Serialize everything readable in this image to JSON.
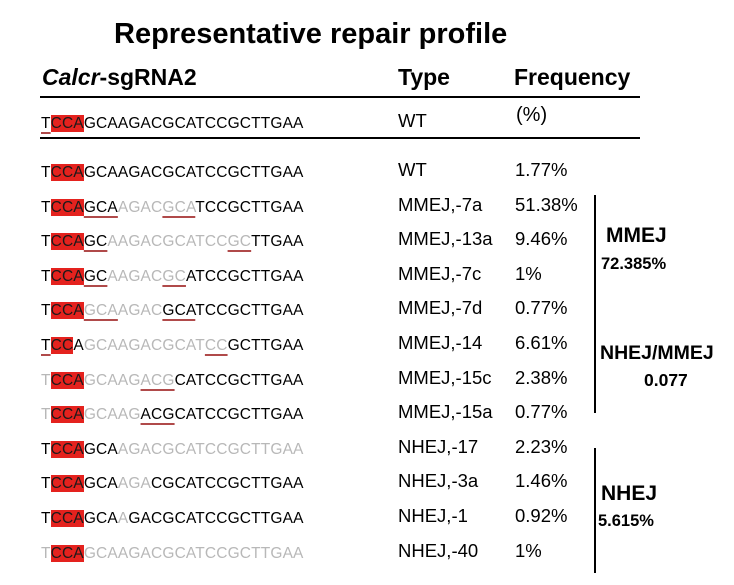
{
  "title": "Representative repair profile",
  "headers": {
    "sgrna_italic": "Calcr",
    "sgrna_rest": "-sgRNA2",
    "type": "Type",
    "frequency": "Frequency",
    "frequency_unit": "(%)"
  },
  "reference": {
    "segments": [
      {
        "t": "T",
        "s": "u"
      },
      {
        "t": "CCA",
        "s": "r"
      },
      {
        "t": "GCAAGACGCATCCGCTTGAA",
        "s": "n"
      }
    ],
    "type": "WT"
  },
  "rows": [
    {
      "segments": [
        {
          "t": "T",
          "s": "n"
        },
        {
          "t": "CCA",
          "s": "r"
        },
        {
          "t": "GCAAGACGCATCCGCTTGAA",
          "s": "n"
        }
      ],
      "type": "WT",
      "freq": "1.77%"
    },
    {
      "segments": [
        {
          "t": "T",
          "s": "n"
        },
        {
          "t": "CCA",
          "s": "r"
        },
        {
          "t": "GCA",
          "s": "u"
        },
        {
          "t": "AGAC",
          "s": "g"
        },
        {
          "t": "GCA",
          "s": "gu"
        },
        {
          "t": "TCCGCTTGAA",
          "s": "n"
        }
      ],
      "type": "MMEJ,-7a",
      "freq": "51.38%"
    },
    {
      "segments": [
        {
          "t": "T",
          "s": "n"
        },
        {
          "t": "CCA",
          "s": "r"
        },
        {
          "t": "GC",
          "s": "u"
        },
        {
          "t": "AAGACGCATCC",
          "s": "g"
        },
        {
          "t": "GC",
          "s": "gu"
        },
        {
          "t": "TTGAA",
          "s": "n"
        }
      ],
      "type": "MMEJ,-13a",
      "freq": "9.46%"
    },
    {
      "segments": [
        {
          "t": "T",
          "s": "n"
        },
        {
          "t": "CCA",
          "s": "r"
        },
        {
          "t": "GC",
          "s": "u"
        },
        {
          "t": "AAGAC",
          "s": "g"
        },
        {
          "t": "GC",
          "s": "gu"
        },
        {
          "t": "ATCCGCTTGAA",
          "s": "n"
        }
      ],
      "type": "MMEJ,-7c",
      "freq": "1%"
    },
    {
      "segments": [
        {
          "t": "T",
          "s": "n"
        },
        {
          "t": "CCA",
          "s": "r"
        },
        {
          "t": "GCA",
          "s": "gu"
        },
        {
          "t": "AGAC",
          "s": "g"
        },
        {
          "t": "GCA",
          "s": "u"
        },
        {
          "t": "TCCGCTTGAA",
          "s": "n"
        }
      ],
      "type": "MMEJ,-7d",
      "freq": "0.77%"
    },
    {
      "segments": [
        {
          "t": "T",
          "s": "u"
        },
        {
          "t": "CC",
          "s": "r"
        },
        {
          "t": "A",
          "s": "n"
        },
        {
          "t": "GCAAGACGCAT",
          "s": "g"
        },
        {
          "t": "CC",
          "s": "gu"
        },
        {
          "t": "GCTTGAA",
          "s": "n"
        }
      ],
      "type": "MMEJ,-14",
      "freq": "6.61%"
    },
    {
      "segments": [
        {
          "t": "T",
          "s": "g"
        },
        {
          "t": "CCA",
          "s": "r"
        },
        {
          "t": "GCAAG",
          "s": "g"
        },
        {
          "t": "ACG",
          "s": "gu"
        },
        {
          "t": "CATCCGCTTGAA",
          "s": "n"
        }
      ],
      "type": "MMEJ,-15c",
      "freq": "2.38%"
    },
    {
      "segments": [
        {
          "t": "T",
          "s": "g"
        },
        {
          "t": "CCA",
          "s": "r"
        },
        {
          "t": "GCAAG",
          "s": "g"
        },
        {
          "t": "ACG",
          "s": "u"
        },
        {
          "t": "CATCCGCTTGAA",
          "s": "n"
        }
      ],
      "type": "MMEJ,-15a",
      "freq": "0.77%"
    },
    {
      "segments": [
        {
          "t": "T",
          "s": "n"
        },
        {
          "t": "CCA",
          "s": "r"
        },
        {
          "t": "GCA",
          "s": "n"
        },
        {
          "t": "AGACGCATCCGCTTGAA",
          "s": "g"
        }
      ],
      "type": "NHEJ,-17",
      "freq": "2.23%"
    },
    {
      "segments": [
        {
          "t": "T",
          "s": "n"
        },
        {
          "t": "CCA",
          "s": "r"
        },
        {
          "t": "GCA",
          "s": "n"
        },
        {
          "t": "AGA",
          "s": "g"
        },
        {
          "t": "CGCATCCGCTTGAA",
          "s": "n"
        }
      ],
      "type": "NHEJ,-3a",
      "freq": "1.46%"
    },
    {
      "segments": [
        {
          "t": "T",
          "s": "n"
        },
        {
          "t": "CCA",
          "s": "r"
        },
        {
          "t": "GCA",
          "s": "n"
        },
        {
          "t": "A",
          "s": "g"
        },
        {
          "t": "GACGCATCCGCTTGAA",
          "s": "n"
        }
      ],
      "type": "NHEJ,-1",
      "freq": "0.92%"
    },
    {
      "segments": [
        {
          "t": "T",
          "s": "g"
        },
        {
          "t": "CCA",
          "s": "r"
        },
        {
          "t": "GCAAGACGCATCCGCTTGAA",
          "s": "g"
        }
      ],
      "type": "NHEJ,-40",
      "freq": "1%"
    }
  ],
  "groups": {
    "mmej_label": "MMEJ",
    "mmej_value": "72.385%",
    "nhej_mmej_label": "NHEJ/MMEJ",
    "nhej_mmej_value": "0.077",
    "nhej_label": "NHEJ",
    "nhej_value": "5.615%"
  },
  "colors": {
    "pam_highlight": "#e4221e",
    "deleted_text": "#b8b8b8",
    "microhomology_underline": "#b04a4a"
  }
}
